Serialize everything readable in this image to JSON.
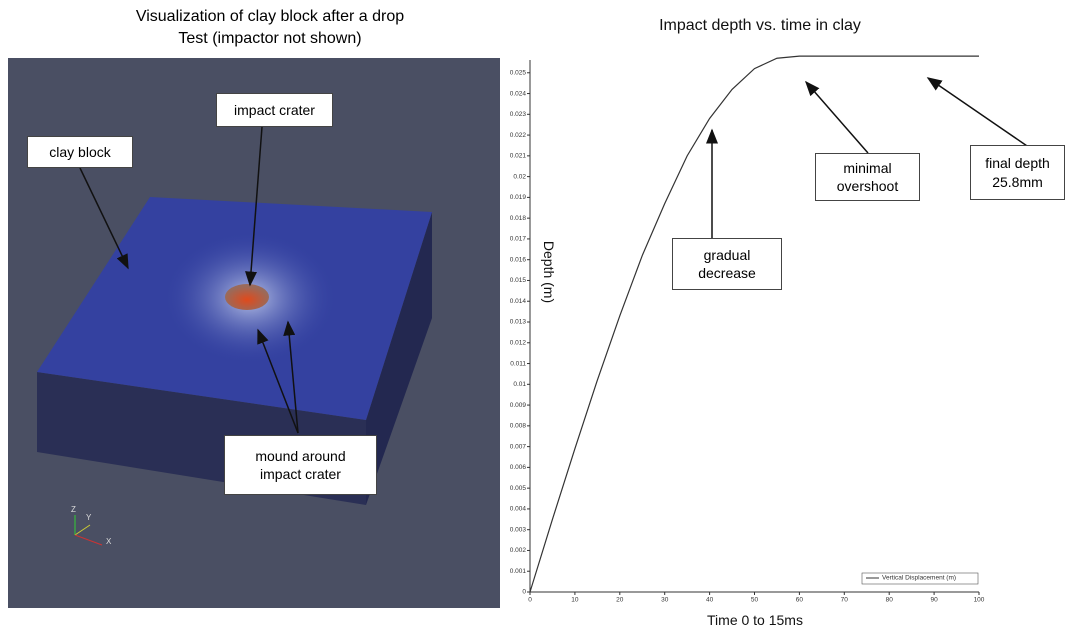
{
  "render": {
    "title": "Visualization of clay block after a drop\nTest (impactor not shown)",
    "labels": [
      "clay block",
      "impact crater",
      "mound around\nimpact crater"
    ],
    "axes_labels": [
      "Z",
      "Y",
      "X"
    ]
  },
  "chart_data": {
    "type": "line",
    "title": "Impact depth vs. time in clay",
    "xlabel": "Time 0 to 15ms",
    "ylabel": "Depth (m)",
    "x": [
      0,
      5,
      10,
      15,
      20,
      25,
      30,
      35,
      40,
      45,
      50,
      55,
      60,
      65,
      70,
      75,
      80,
      85,
      90,
      95,
      100
    ],
    "series": [
      {
        "name": "Vertical Displacement (m)",
        "color": "#333333",
        "values": [
          0,
          0.0035,
          0.0069,
          0.0102,
          0.0133,
          0.0162,
          0.0187,
          0.021,
          0.0228,
          0.0242,
          0.0252,
          0.0257,
          0.0258,
          0.0258,
          0.0258,
          0.0258,
          0.0258,
          0.0258,
          0.0258,
          0.0258,
          0.0258
        ]
      }
    ],
    "xlim": [
      0,
      100
    ],
    "xticks": [
      0,
      10,
      20,
      30,
      40,
      50,
      60,
      70,
      80,
      90,
      100
    ],
    "ylim": [
      0,
      0.026
    ],
    "yticks": [
      0,
      0.001,
      0.002,
      0.003,
      0.004,
      0.005,
      0.006,
      0.007,
      0.008,
      0.009,
      0.01,
      0.011,
      0.012,
      0.013,
      0.014,
      0.015,
      0.016,
      0.017,
      0.018,
      0.019,
      0.02,
      0.021,
      0.022,
      0.023,
      0.024,
      0.025
    ],
    "legend": "lower right",
    "annotations": [
      "gradual decrease",
      "minimal overshoot",
      "final depth\n25.8mm"
    ]
  }
}
